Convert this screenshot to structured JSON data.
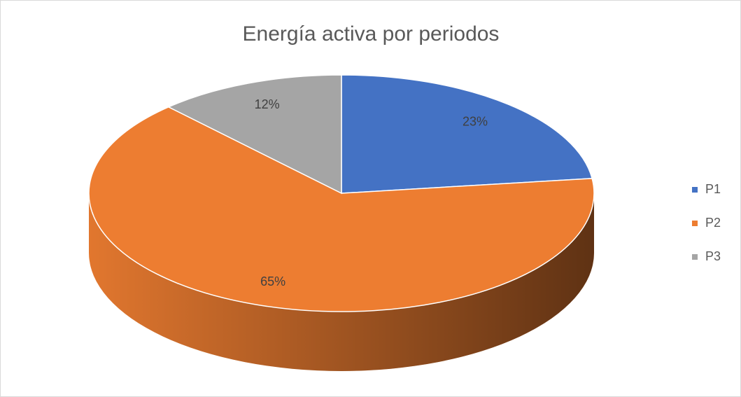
{
  "chart_data": {
    "type": "pie",
    "title": "Energía activa por periodos",
    "categories": [
      "P1",
      "P2",
      "P3"
    ],
    "values": [
      23,
      65,
      12
    ],
    "value_labels": [
      "23%",
      "65%",
      "12%"
    ],
    "colors": [
      "#4472c4",
      "#ed7d31",
      "#a5a5a5"
    ],
    "legend": "right",
    "three_d": true
  }
}
